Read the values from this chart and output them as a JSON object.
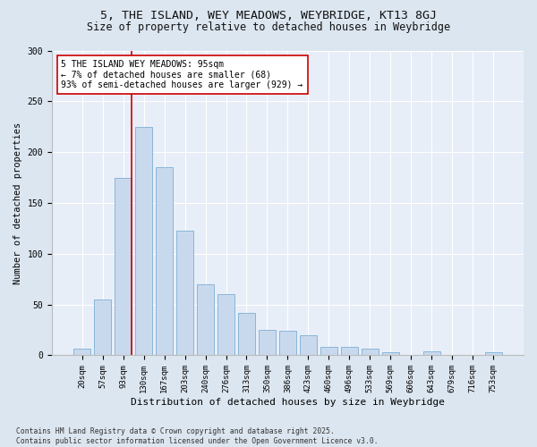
{
  "title_line1": "5, THE ISLAND, WEY MEADOWS, WEYBRIDGE, KT13 8GJ",
  "title_line2": "Size of property relative to detached houses in Weybridge",
  "xlabel": "Distribution of detached houses by size in Weybridge",
  "ylabel": "Number of detached properties",
  "bar_labels": [
    "20sqm",
    "57sqm",
    "93sqm",
    "130sqm",
    "167sqm",
    "203sqm",
    "240sqm",
    "276sqm",
    "313sqm",
    "350sqm",
    "386sqm",
    "423sqm",
    "460sqm",
    "496sqm",
    "533sqm",
    "569sqm",
    "606sqm",
    "643sqm",
    "679sqm",
    "716sqm",
    "753sqm"
  ],
  "bar_values": [
    7,
    55,
    175,
    225,
    185,
    123,
    70,
    60,
    42,
    25,
    24,
    20,
    8,
    8,
    7,
    3,
    0,
    4,
    0,
    0,
    3
  ],
  "bar_color": "#c9d9ed",
  "bar_edge_color": "#7bafd4",
  "property_line_x": 2.43,
  "property_line_color": "#cc0000",
  "annotation_text": "5 THE ISLAND WEY MEADOWS: 95sqm\n← 7% of detached houses are smaller (68)\n93% of semi-detached houses are larger (929) →",
  "annotation_box_facecolor": "#ffffff",
  "annotation_box_edgecolor": "#cc0000",
  "ylim": [
    0,
    300
  ],
  "yticks": [
    0,
    50,
    100,
    150,
    200,
    250,
    300
  ],
  "background_color": "#dce6f0",
  "plot_bg_color": "#e8eef8",
  "grid_color": "#ffffff",
  "footnote": "Contains HM Land Registry data © Crown copyright and database right 2025.\nContains public sector information licensed under the Open Government Licence v3.0.",
  "title_fontsize": 9.5,
  "subtitle_fontsize": 8.5,
  "axis_label_fontsize": 8,
  "tick_fontsize": 6.5,
  "annotation_fontsize": 7,
  "footnote_fontsize": 5.8,
  "ylabel_fontsize": 7.5
}
